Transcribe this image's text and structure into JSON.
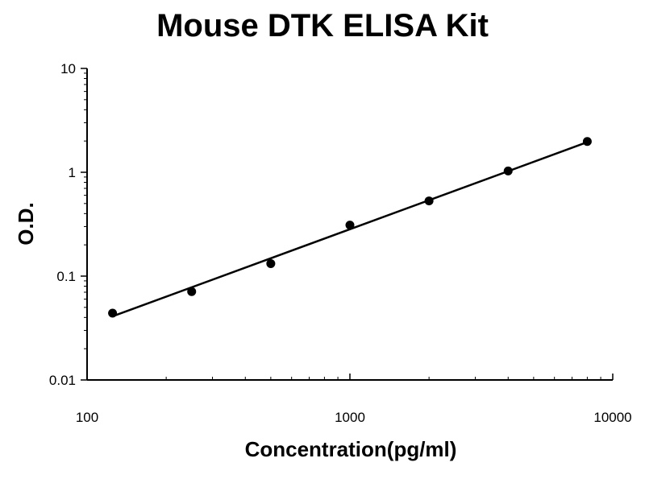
{
  "chart_data": {
    "type": "scatter",
    "title": "Mouse DTK ELISA Kit",
    "xlabel": "Concentration(pg/ml)",
    "ylabel": "O.D.",
    "x_scale": "log",
    "y_scale": "log",
    "xlim": [
      100,
      10000
    ],
    "ylim": [
      0.01,
      10
    ],
    "x_ticks": [
      100,
      1000,
      10000
    ],
    "x_tick_labels": [
      "100",
      "1000",
      "10000"
    ],
    "y_ticks": [
      0.01,
      0.1,
      1,
      10
    ],
    "y_tick_labels": [
      "0.01",
      "0.1",
      "1",
      "10"
    ],
    "grid": false,
    "series": [
      {
        "x": [
          125,
          250,
          500,
          1000,
          2000,
          4000,
          8000
        ],
        "y": [
          0.044,
          0.071,
          0.132,
          0.31,
          0.53,
          1.03,
          1.98
        ]
      }
    ],
    "fit_line": {
      "x": [
        125,
        8000
      ],
      "y": [
        0.041,
        1.95
      ]
    },
    "colors": {
      "marker": "#000000",
      "line": "#000000",
      "axis": "#000000"
    }
  }
}
